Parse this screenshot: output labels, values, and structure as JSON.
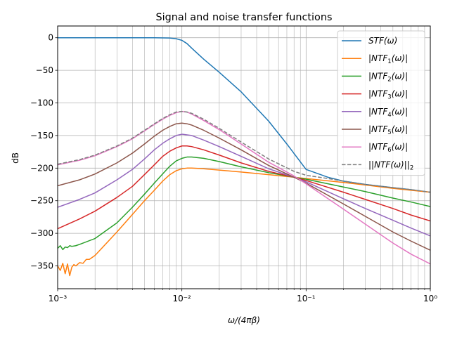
{
  "chart_data": {
    "type": "line",
    "title": "Signal and noise transfer functions",
    "xlabel": "ω/(4πβ)",
    "ylabel": "dB",
    "xscale": "log",
    "xlim": [
      0.001,
      1
    ],
    "ylim": [
      -385,
      18
    ],
    "grid": true,
    "grid_minor_x": true,
    "legend_position": "top-right",
    "x_ticks": [
      {
        "value": 0.001,
        "label": "10⁻³"
      },
      {
        "value": 0.01,
        "label": "10⁻²"
      },
      {
        "value": 0.1,
        "label": "10⁻¹"
      },
      {
        "value": 1,
        "label": "10⁰"
      }
    ],
    "y_ticks": [
      {
        "value": 0,
        "label": "0"
      },
      {
        "value": -50,
        "label": "−50"
      },
      {
        "value": -100,
        "label": "−100"
      },
      {
        "value": -150,
        "label": "−150"
      },
      {
        "value": -200,
        "label": "−200"
      },
      {
        "value": -250,
        "label": "−250"
      },
      {
        "value": -300,
        "label": "−300"
      },
      {
        "value": -350,
        "label": "−350"
      }
    ],
    "series": [
      {
        "name": "STF(ω)",
        "color": "#1f77b4",
        "dash": false,
        "x": [
          0.001,
          0.002,
          0.004,
          0.006,
          0.008,
          0.009,
          0.01,
          0.011,
          0.012,
          0.015,
          0.02,
          0.03,
          0.05,
          0.07,
          0.1,
          0.15,
          0.2,
          0.3,
          0.5,
          0.7,
          1.0
        ],
        "y": [
          0,
          0,
          0,
          0,
          -0.5,
          -1.5,
          -4,
          -9,
          -16,
          -33,
          -53,
          -83,
          -128,
          -163,
          -202,
          -214,
          -220,
          -225,
          -230,
          -233,
          -237
        ]
      },
      {
        "name": "|NTF₁(ω)|",
        "color": "#ff7f0e",
        "dash": false,
        "x": [
          0.001,
          0.00105,
          0.0011,
          0.00115,
          0.0012,
          0.00125,
          0.0013,
          0.00135,
          0.0014,
          0.0015,
          0.0016,
          0.0017,
          0.0018,
          0.002,
          0.003,
          0.004,
          0.005,
          0.006,
          0.007,
          0.008,
          0.009,
          0.01,
          0.011,
          0.012,
          0.015,
          0.02,
          0.03,
          0.05,
          0.08,
          0.1,
          0.2,
          0.3,
          0.5,
          0.7,
          1.0
        ],
        "y": [
          -350,
          -357,
          -346,
          -362,
          -347,
          -365,
          -352,
          -348,
          -350,
          -345,
          -346,
          -340,
          -340,
          -334,
          -298,
          -271,
          -250,
          -234,
          -220,
          -210,
          -204,
          -201,
          -200,
          -200,
          -201,
          -203,
          -206,
          -210,
          -214,
          -216,
          -222,
          -226,
          -231,
          -234,
          -237
        ]
      },
      {
        "name": "|NTF₂(ω)|",
        "color": "#2ca02c",
        "dash": false,
        "x": [
          0.001,
          0.00105,
          0.0011,
          0.00115,
          0.0012,
          0.00125,
          0.0013,
          0.0014,
          0.0015,
          0.002,
          0.003,
          0.004,
          0.005,
          0.006,
          0.007,
          0.008,
          0.009,
          0.01,
          0.011,
          0.012,
          0.015,
          0.02,
          0.03,
          0.05,
          0.08,
          0.1,
          0.2,
          0.3,
          0.5,
          0.7,
          1.0
        ],
        "y": [
          -323,
          -319,
          -325,
          -321,
          -322,
          -319,
          -320,
          -319,
          -317,
          -308,
          -284,
          -260,
          -240,
          -223,
          -209,
          -197,
          -189,
          -185,
          -183,
          -183,
          -185,
          -190,
          -198,
          -207,
          -214,
          -217,
          -229,
          -236,
          -246,
          -252,
          -259
        ]
      },
      {
        "name": "|NTF₃(ω)|",
        "color": "#d62728",
        "dash": false,
        "x": [
          0.001,
          0.0015,
          0.002,
          0.003,
          0.004,
          0.005,
          0.006,
          0.007,
          0.008,
          0.009,
          0.01,
          0.011,
          0.012,
          0.015,
          0.02,
          0.03,
          0.05,
          0.08,
          0.1,
          0.2,
          0.3,
          0.5,
          0.7,
          1.0
        ],
        "y": [
          -293,
          -278,
          -266,
          -245,
          -228,
          -210,
          -195,
          -182,
          -174,
          -169,
          -166,
          -166,
          -167,
          -172,
          -180,
          -192,
          -205,
          -214,
          -219,
          -237,
          -248,
          -262,
          -272,
          -281
        ]
      },
      {
        "name": "|NTF₄(ω)|",
        "color": "#9467bd",
        "dash": false,
        "x": [
          0.001,
          0.0015,
          0.002,
          0.003,
          0.004,
          0.005,
          0.006,
          0.007,
          0.008,
          0.009,
          0.01,
          0.011,
          0.012,
          0.015,
          0.02,
          0.03,
          0.05,
          0.08,
          0.1,
          0.2,
          0.3,
          0.5,
          0.7,
          1.0
        ],
        "y": [
          -260,
          -248,
          -238,
          -218,
          -202,
          -186,
          -172,
          -162,
          -155,
          -150,
          -148,
          -149,
          -150,
          -157,
          -167,
          -182,
          -201,
          -214,
          -221,
          -247,
          -262,
          -280,
          -292,
          -304
        ]
      },
      {
        "name": "|NTF₅(ω)|",
        "color": "#8c564b",
        "dash": false,
        "x": [
          0.001,
          0.0015,
          0.002,
          0.003,
          0.004,
          0.005,
          0.006,
          0.007,
          0.008,
          0.009,
          0.01,
          0.011,
          0.012,
          0.015,
          0.02,
          0.03,
          0.05,
          0.08,
          0.1,
          0.2,
          0.3,
          0.5,
          0.7,
          1.0
        ],
        "y": [
          -227,
          -218,
          -209,
          -192,
          -177,
          -163,
          -151,
          -142,
          -136,
          -132,
          -131,
          -132,
          -134,
          -142,
          -154,
          -172,
          -196,
          -214,
          -223,
          -255,
          -274,
          -298,
          -312,
          -326
        ]
      },
      {
        "name": "|NTF₆(ω)|",
        "color": "#e377c2",
        "dash": false,
        "x": [
          0.001,
          0.0015,
          0.002,
          0.003,
          0.004,
          0.005,
          0.006,
          0.007,
          0.008,
          0.009,
          0.01,
          0.011,
          0.012,
          0.015,
          0.02,
          0.03,
          0.05,
          0.08,
          0.1,
          0.2,
          0.3,
          0.5,
          0.7,
          1.0
        ],
        "y": [
          -195,
          -188,
          -181,
          -167,
          -155,
          -143,
          -133,
          -125,
          -119,
          -115,
          -113,
          -114,
          -117,
          -127,
          -141,
          -163,
          -191,
          -212,
          -224,
          -263,
          -286,
          -315,
          -332,
          -347
        ]
      },
      {
        "name": "||NTF(ω)||₂",
        "color": "#7f7f7f",
        "dash": true,
        "x": [
          0.001,
          0.0015,
          0.002,
          0.003,
          0.004,
          0.005,
          0.006,
          0.007,
          0.008,
          0.009,
          0.01,
          0.011,
          0.012,
          0.015,
          0.02,
          0.03,
          0.05,
          0.08,
          0.1,
          0.15,
          0.2,
          0.3,
          0.5,
          0.7,
          1.0
        ],
        "y": [
          -194,
          -187,
          -180,
          -166,
          -154,
          -142,
          -132,
          -124,
          -118,
          -114,
          -113,
          -114,
          -116,
          -125,
          -139,
          -160,
          -186,
          -205,
          -211,
          -216,
          -220,
          -225,
          -230,
          -233,
          -237
        ]
      }
    ],
    "legend_labels": [
      {
        "pre": "STF",
        "sub": "",
        "post": "(ω)",
        "wrap": "none"
      },
      {
        "pre": "NTF",
        "sub": "1",
        "post": "(ω)",
        "wrap": "abs"
      },
      {
        "pre": "NTF",
        "sub": "2",
        "post": "(ω)",
        "wrap": "abs"
      },
      {
        "pre": "NTF",
        "sub": "3",
        "post": "(ω)",
        "wrap": "abs"
      },
      {
        "pre": "NTF",
        "sub": "4",
        "post": "(ω)",
        "wrap": "abs"
      },
      {
        "pre": "NTF",
        "sub": "5",
        "post": "(ω)",
        "wrap": "abs"
      },
      {
        "pre": "NTF",
        "sub": "6",
        "post": "(ω)",
        "wrap": "abs"
      },
      {
        "pre": "NTF",
        "sub": "",
        "post": "(ω)",
        "wrap": "norm2"
      }
    ]
  }
}
